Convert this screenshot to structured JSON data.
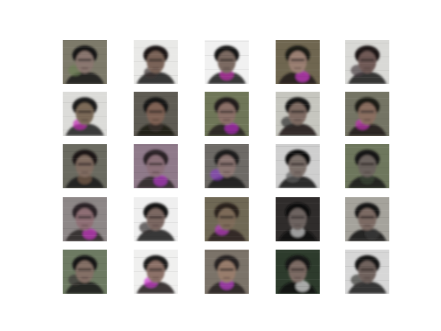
{
  "grid": {
    "rows": 5,
    "cols": 5,
    "tiles": [
      {
        "bg": "#7d7a6a",
        "face": "#8a7770",
        "hair": "#141414",
        "accent": "#6c7f55"
      },
      {
        "bg": "#e9e9e7",
        "face": "#7a6458",
        "hair": "#1a1818",
        "accent": "#3a3433"
      },
      {
        "bg": "#f1f1f1",
        "face": "#7b6a62",
        "hair": "#171515",
        "accent": "#c32fb0"
      },
      {
        "bg": "#6f6650",
        "face": "#9a7f72",
        "hair": "#1d1a18",
        "accent": "#d33ad0"
      },
      {
        "bg": "#d9d9d6",
        "face": "#6f5a57",
        "hair": "#1a1718",
        "accent": "#4a3f44"
      },
      {
        "bg": "#dcdcd9",
        "face": "#7b6a59",
        "hair": "#1c1c1c",
        "accent": "#c52ab6"
      },
      {
        "bg": "#5e5b53",
        "face": "#7f6254",
        "hair": "#161413",
        "accent": "#403531"
      },
      {
        "bg": "#6f7658",
        "face": "#8b6f67",
        "hair": "#231d1c",
        "accent": "#b52bc4"
      },
      {
        "bg": "#c6c6bf",
        "face": "#7e6a62",
        "hair": "#151313",
        "accent": "#2f2c2c"
      },
      {
        "bg": "#747464",
        "face": "#8a6e61",
        "hair": "#1e1b19",
        "accent": "#c530b7"
      },
      {
        "bg": "#6a6a60",
        "face": "#806c61",
        "hair": "#1a1818",
        "accent": "#7a5f4f"
      },
      {
        "bg": "#8f7a8a",
        "face": "#8c6f79",
        "hair": "#2a2326",
        "accent": "#b43ac8"
      },
      {
        "bg": "#6d6a66",
        "face": "#8a7471",
        "hair": "#1b1a1a",
        "accent": "#8a42c2"
      },
      {
        "bg": "#cfcfcf",
        "face": "#7c6f6b",
        "hair": "#111111",
        "accent": "#5a5a5a"
      },
      {
        "bg": "#6e775d",
        "face": "#6a625d",
        "hair": "#161616",
        "accent": "#3f4a3b"
      },
      {
        "bg": "#8d8787",
        "face": "#8e6e75",
        "hair": "#2a2327",
        "accent": "#cc3ac9"
      },
      {
        "bg": "#efefef",
        "face": "#7c6862",
        "hair": "#171515",
        "accent": "#343131"
      },
      {
        "bg": "#6f6855",
        "face": "#7d6b58",
        "hair": "#2b211c",
        "accent": "#b93cc8"
      },
      {
        "bg": "#2f2c2b",
        "face": "#6d6461",
        "hair": "#0f0f0f",
        "accent": "#d9d9d9"
      },
      {
        "bg": "#a5a39c",
        "face": "#7c6a64",
        "hair": "#131212",
        "accent": "#3a3939"
      },
      {
        "bg": "#6d7a62",
        "face": "#846f66",
        "hair": "#191716",
        "accent": "#3a3736"
      },
      {
        "bg": "#f0f0ef",
        "face": "#8c7168",
        "hair": "#1c1a1a",
        "accent": "#d039d2"
      },
      {
        "bg": "#7b7369",
        "face": "#987d6c",
        "hair": "#252120",
        "accent": "#c13fd0"
      },
      {
        "bg": "#2d3b2c",
        "face": "#7b6a63",
        "hair": "#121212",
        "accent": "#e7e7e7"
      },
      {
        "bg": "#d7d7d7",
        "face": "#6f625d",
        "hair": "#141414",
        "accent": "#3c3a39"
      }
    ]
  }
}
